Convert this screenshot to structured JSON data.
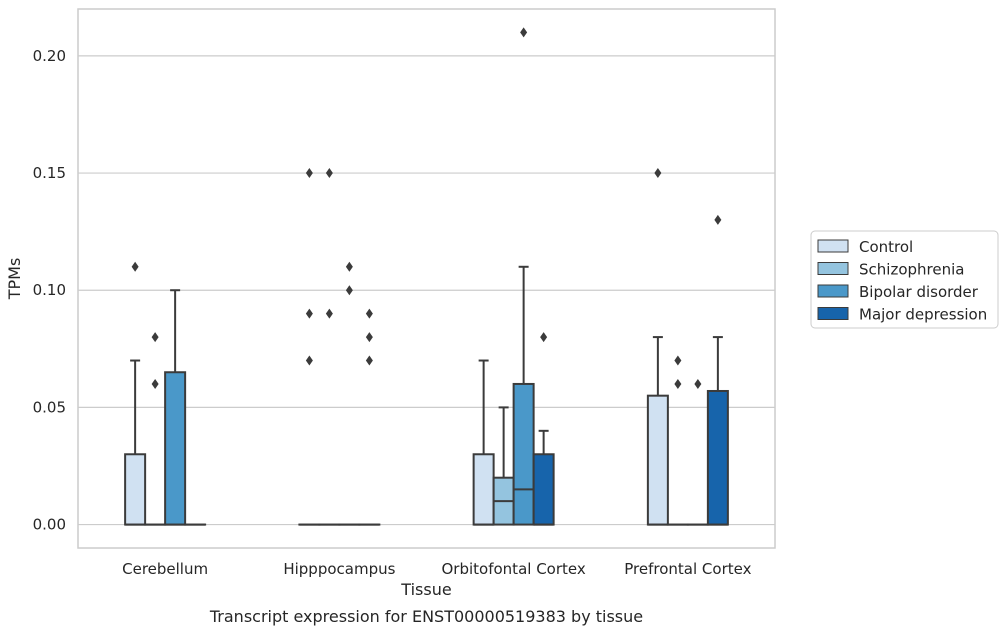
{
  "chart_data": {
    "type": "box",
    "title": "",
    "caption": "Transcript expression for ENST00000519383 by tissue",
    "xlabel": "Tissue",
    "ylabel": "TPMs",
    "ylim": [
      -0.01,
      0.22
    ],
    "yticks": [
      0.0,
      0.05,
      0.1,
      0.15,
      0.2
    ],
    "ytick_labels": [
      "0.00",
      "0.05",
      "0.10",
      "0.15",
      "0.20"
    ],
    "grid": "horizontal",
    "legend_position": "right",
    "categories": [
      "Cerebellum",
      "Hipppocampus",
      "Orbitofontal Cortex",
      "Prefrontal Cortex"
    ],
    "series": [
      {
        "name": "Control",
        "color": "#d0e1f2",
        "boxes": [
          {
            "q1": 0.0,
            "median": 0.0,
            "q3": 0.03,
            "whisker_low": 0.0,
            "whisker_high": 0.07,
            "outliers": [
              0.11
            ]
          },
          {
            "q1": 0.0,
            "median": 0.0,
            "q3": 0.0,
            "whisker_low": 0.0,
            "whisker_high": 0.0,
            "outliers": [
              0.15,
              0.09,
              0.07
            ]
          },
          {
            "q1": 0.0,
            "median": 0.0,
            "q3": 0.03,
            "whisker_low": 0.0,
            "whisker_high": 0.07,
            "outliers": []
          },
          {
            "q1": 0.0,
            "median": 0.0,
            "q3": 0.055,
            "whisker_low": 0.0,
            "whisker_high": 0.08,
            "outliers": [
              0.15
            ]
          }
        ]
      },
      {
        "name": "Schizophrenia",
        "color": "#94c4df",
        "boxes": [
          {
            "q1": 0.0,
            "median": 0.0,
            "q3": 0.0,
            "whisker_low": 0.0,
            "whisker_high": 0.0,
            "outliers": [
              0.08,
              0.06
            ]
          },
          {
            "q1": 0.0,
            "median": 0.0,
            "q3": 0.0,
            "whisker_low": 0.0,
            "whisker_high": 0.0,
            "outliers": [
              0.15,
              0.09
            ]
          },
          {
            "q1": 0.0,
            "median": 0.01,
            "q3": 0.02,
            "whisker_low": 0.0,
            "whisker_high": 0.05,
            "outliers": []
          },
          {
            "q1": 0.0,
            "median": 0.0,
            "q3": 0.0,
            "whisker_low": 0.0,
            "whisker_high": 0.0,
            "outliers": [
              0.07,
              0.06
            ]
          }
        ]
      },
      {
        "name": "Bipolar disorder",
        "color": "#4a98c9",
        "boxes": [
          {
            "q1": 0.0,
            "median": 0.0,
            "q3": 0.065,
            "whisker_low": 0.0,
            "whisker_high": 0.1,
            "outliers": []
          },
          {
            "q1": 0.0,
            "median": 0.0,
            "q3": 0.0,
            "whisker_low": 0.0,
            "whisker_high": 0.0,
            "outliers": [
              0.11,
              0.1
            ]
          },
          {
            "q1": 0.0,
            "median": 0.015,
            "q3": 0.06,
            "whisker_low": 0.0,
            "whisker_high": 0.11,
            "outliers": [
              0.21
            ]
          },
          {
            "q1": 0.0,
            "median": 0.0,
            "q3": 0.0,
            "whisker_low": 0.0,
            "whisker_high": 0.0,
            "outliers": [
              0.06
            ]
          }
        ]
      },
      {
        "name": "Major depression",
        "color": "#1764ab",
        "boxes": [
          {
            "q1": 0.0,
            "median": 0.0,
            "q3": 0.0,
            "whisker_low": 0.0,
            "whisker_high": 0.0,
            "outliers": []
          },
          {
            "q1": 0.0,
            "median": 0.0,
            "q3": 0.0,
            "whisker_low": 0.0,
            "whisker_high": 0.0,
            "outliers": [
              0.09,
              0.08,
              0.07
            ]
          },
          {
            "q1": 0.0,
            "median": 0.0,
            "q3": 0.03,
            "whisker_low": 0.0,
            "whisker_high": 0.04,
            "outliers": [
              0.08
            ]
          },
          {
            "q1": 0.0,
            "median": 0.0,
            "q3": 0.057,
            "whisker_low": 0.0,
            "whisker_high": 0.08,
            "outliers": [
              0.13
            ]
          }
        ]
      }
    ]
  }
}
